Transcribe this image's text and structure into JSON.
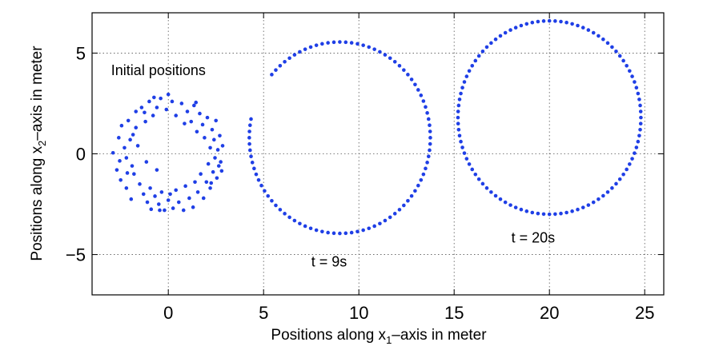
{
  "chart_data": {
    "type": "scatter",
    "xlabel": {
      "prefix": "Positions along x",
      "sub": "1",
      "suffix": "–axis in meter"
    },
    "ylabel": {
      "prefix": "Positions along x",
      "sub": "2",
      "suffix": "–axis in meter"
    },
    "xlim": [
      -4,
      26
    ],
    "ylim": [
      -7,
      7
    ],
    "xticks": [
      0,
      5,
      10,
      15,
      20,
      25
    ],
    "yticks": [
      -5,
      0,
      5
    ],
    "xtick_labels": [
      "0",
      "5",
      "10",
      "15",
      "20",
      "25"
    ],
    "ytick_labels": [
      "−5",
      "0",
      "5"
    ],
    "grid": true,
    "marker_color": "#1f3fe6",
    "series": [
      {
        "points": [
          [
            -2.9,
            0.05
          ],
          [
            -2.7,
            -0.8
          ],
          [
            -2.6,
            0.8
          ],
          [
            -2.5,
            -1.3
          ],
          [
            -2.45,
            1.4
          ],
          [
            -2.3,
            0.3
          ],
          [
            -2.2,
            -0.2
          ],
          [
            -2.2,
            -1.7
          ],
          [
            -2.1,
            1.65
          ],
          [
            -2.0,
            0.7
          ],
          [
            -1.9,
            -0.6
          ],
          [
            -1.95,
            -2.25
          ],
          [
            -1.8,
            -1.0
          ],
          [
            -1.7,
            1.3
          ],
          [
            -1.7,
            2.1
          ],
          [
            -1.6,
            0.4
          ],
          [
            -1.5,
            -1.5
          ],
          [
            -1.4,
            2.3
          ],
          [
            -1.3,
            -2.0
          ],
          [
            -1.2,
            1.6
          ],
          [
            -1.1,
            -2.4
          ],
          [
            -1.0,
            2.6
          ],
          [
            -0.95,
            -1.7
          ],
          [
            -0.9,
            -2.75
          ],
          [
            -0.8,
            1.9
          ],
          [
            -0.75,
            2.8
          ],
          [
            -0.7,
            -2.1
          ],
          [
            -0.6,
            2.3
          ],
          [
            -0.5,
            -2.5
          ],
          [
            -0.4,
            2.75
          ],
          [
            -0.35,
            -1.9
          ],
          [
            -0.2,
            -2.8
          ],
          [
            -0.1,
            2.2
          ],
          [
            0.0,
            -2.3
          ],
          [
            0.0,
            2.95
          ],
          [
            0.1,
            -2.0
          ],
          [
            0.2,
            2.6
          ],
          [
            0.25,
            -2.7
          ],
          [
            0.4,
            1.9
          ],
          [
            0.4,
            -1.8
          ],
          [
            0.55,
            -2.4
          ],
          [
            0.7,
            2.5
          ],
          [
            0.8,
            -2.8
          ],
          [
            0.85,
            1.5
          ],
          [
            0.9,
            -1.6
          ],
          [
            1.0,
            2.1
          ],
          [
            1.1,
            -2.2
          ],
          [
            1.2,
            1.6
          ],
          [
            1.3,
            -2.65
          ],
          [
            1.35,
            2.4
          ],
          [
            1.4,
            -1.4
          ],
          [
            1.5,
            1.1
          ],
          [
            1.55,
            -1.9
          ],
          [
            1.65,
            2.0
          ],
          [
            1.7,
            -1.0
          ],
          [
            1.8,
            1.45
          ],
          [
            1.85,
            -2.2
          ],
          [
            1.9,
            0.8
          ],
          [
            2.0,
            -1.4
          ],
          [
            2.05,
            1.8
          ],
          [
            2.1,
            -0.5
          ],
          [
            2.2,
            0.3
          ],
          [
            2.2,
            -1.7
          ],
          [
            2.3,
            1.2
          ],
          [
            2.35,
            -0.9
          ],
          [
            2.4,
            0.7
          ],
          [
            2.45,
            -0.2
          ],
          [
            2.5,
            1.65
          ],
          [
            2.55,
            -1.2
          ],
          [
            2.6,
            0.2
          ],
          [
            2.65,
            -0.6
          ],
          [
            2.7,
            0.9
          ],
          [
            2.75,
            -0.4
          ],
          [
            2.8,
            -0.85
          ],
          [
            2.85,
            0.4
          ],
          [
            -1.15,
            -0.4
          ],
          [
            -0.6,
            -0.8
          ],
          [
            -1.85,
            0.95
          ],
          [
            -2.15,
            -0.95
          ],
          [
            -2.55,
            -0.35
          ],
          [
            -0.45,
            -2.8
          ],
          [
            -1.25,
            2.05
          ],
          [
            2.25,
            -1.45
          ],
          [
            1.45,
            2.55
          ]
        ]
      },
      {
        "circle": {
          "cx": 9.0,
          "cy": 0.8,
          "r": 4.75,
          "n": 96,
          "gap_from_deg": 142,
          "gap_to_deg": 166
        }
      },
      {
        "circle": {
          "cx": 20.0,
          "cy": 1.8,
          "r": 4.8,
          "n": 100
        }
      }
    ],
    "annotations": [
      {
        "text": "Initial positions",
        "x": -3.0,
        "y": 3.9
      },
      {
        "text": "t = 9s",
        "x": 7.5,
        "y": -5.6
      },
      {
        "text": "t = 20s",
        "x": 18.0,
        "y": -4.4
      }
    ]
  }
}
